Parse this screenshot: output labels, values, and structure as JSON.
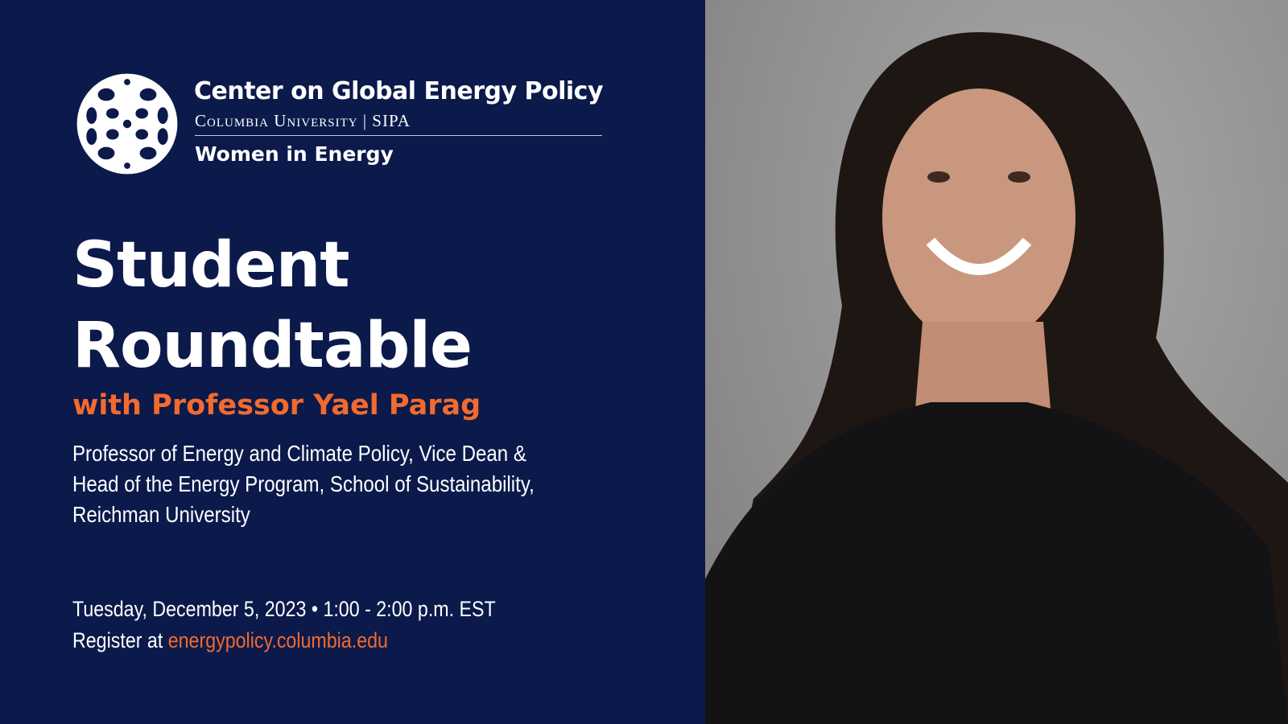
{
  "brand": {
    "org_name": "Center on Global Energy Policy",
    "university": "Columbia University | SIPA",
    "program": "Women in Energy",
    "logo_icon": "columbia-crown-seal",
    "background_color": "#0b1a4b",
    "accent_color": "#f26a2e"
  },
  "event": {
    "title_line1": "Student",
    "title_line2": "Roundtable",
    "subtitle": "with Professor Yael Parag",
    "speaker_desc_line1": "Professor of Energy and Climate Policy, Vice Dean &",
    "speaker_desc_line2": "Head of the Energy Program, School of Sustainability,",
    "speaker_desc_line3": "Reichman University",
    "datetime": "Tuesday, December 5, 2023 • 1:00 - 2:00 p.m. EST",
    "register_prefix": "Register at ",
    "register_link": "energypolicy.columbia.edu"
  },
  "photo": {
    "subject": "speaker-portrait"
  }
}
